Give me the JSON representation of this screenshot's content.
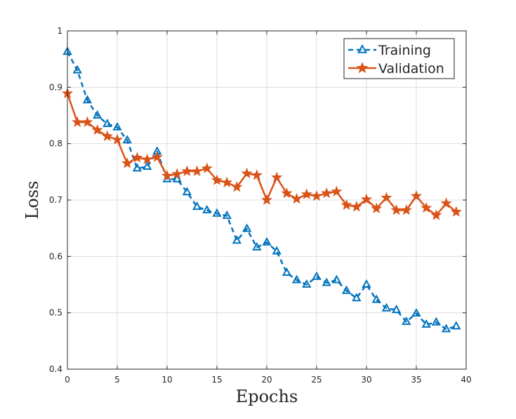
{
  "chart_data": {
    "type": "line",
    "title": "",
    "xlabel": "Epochs",
    "ylabel": "Loss",
    "xlim": [
      0,
      40
    ],
    "ylim": [
      0.4,
      1
    ],
    "xticks": [
      0,
      5,
      10,
      15,
      20,
      25,
      30,
      35,
      40
    ],
    "yticks": [
      0.4,
      0.5,
      0.6,
      0.7,
      0.8,
      0.9,
      1
    ],
    "xtick_labels": [
      "0",
      "5",
      "10",
      "15",
      "20",
      "25",
      "30",
      "35",
      "40"
    ],
    "ytick_labels": [
      "0.4",
      "0.5",
      "0.6",
      "0.7",
      "0.8",
      "0.9",
      "1"
    ],
    "grid": true,
    "legend_position": "top-right",
    "x": [
      0,
      1,
      2,
      3,
      4,
      5,
      6,
      7,
      8,
      9,
      10,
      11,
      12,
      13,
      14,
      15,
      16,
      17,
      18,
      19,
      20,
      21,
      22,
      23,
      24,
      25,
      26,
      27,
      28,
      29,
      30,
      31,
      32,
      33,
      34,
      35,
      36,
      37,
      38,
      39
    ],
    "series": [
      {
        "name": "Training",
        "color": "#0072BD",
        "line_style": "dashed",
        "marker": "triangle",
        "values": [
          0.963,
          0.93,
          0.877,
          0.85,
          0.835,
          0.829,
          0.806,
          0.756,
          0.759,
          0.786,
          0.737,
          0.737,
          0.714,
          0.688,
          0.682,
          0.676,
          0.672,
          0.628,
          0.649,
          0.616,
          0.625,
          0.609,
          0.571,
          0.558,
          0.55,
          0.564,
          0.553,
          0.558,
          0.539,
          0.526,
          0.55,
          0.523,
          0.508,
          0.505,
          0.484,
          0.499,
          0.479,
          0.483,
          0.471,
          0.476
        ]
      },
      {
        "name": "Validation",
        "color": "#D95319",
        "line_style": "solid",
        "marker": "star",
        "values": [
          0.889,
          0.838,
          0.838,
          0.824,
          0.813,
          0.807,
          0.765,
          0.775,
          0.772,
          0.776,
          0.743,
          0.746,
          0.751,
          0.751,
          0.756,
          0.735,
          0.731,
          0.723,
          0.747,
          0.744,
          0.7,
          0.74,
          0.712,
          0.702,
          0.71,
          0.707,
          0.712,
          0.715,
          0.691,
          0.688,
          0.701,
          0.685,
          0.704,
          0.682,
          0.682,
          0.707,
          0.686,
          0.673,
          0.694,
          0.679
        ]
      }
    ]
  }
}
